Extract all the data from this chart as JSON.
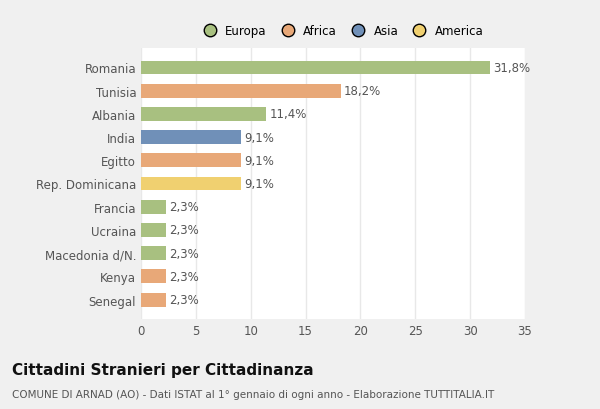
{
  "categories": [
    "Romania",
    "Tunisia",
    "Albania",
    "India",
    "Egitto",
    "Rep. Dominicana",
    "Francia",
    "Ucraina",
    "Macedonia d/N.",
    "Kenya",
    "Senegal"
  ],
  "values": [
    31.8,
    18.2,
    11.4,
    9.1,
    9.1,
    9.1,
    2.3,
    2.3,
    2.3,
    2.3,
    2.3
  ],
  "labels": [
    "31,8%",
    "18,2%",
    "11,4%",
    "9,1%",
    "9,1%",
    "9,1%",
    "2,3%",
    "2,3%",
    "2,3%",
    "2,3%",
    "2,3%"
  ],
  "colors": [
    "#a8c080",
    "#e8a878",
    "#a8c080",
    "#7090b8",
    "#e8a878",
    "#f0d070",
    "#a8c080",
    "#a8c080",
    "#a8c080",
    "#e8a878",
    "#e8a878"
  ],
  "legend_labels": [
    "Europa",
    "Africa",
    "Asia",
    "America"
  ],
  "legend_colors": [
    "#a8c080",
    "#e8a878",
    "#7090b8",
    "#f0d070"
  ],
  "title": "Cittadini Stranieri per Cittadinanza",
  "subtitle": "COMUNE DI ARNAD (AO) - Dati ISTAT al 1° gennaio di ogni anno - Elaborazione TUTTITALIA.IT",
  "xlim": [
    0,
    35
  ],
  "xticks": [
    0,
    5,
    10,
    15,
    20,
    25,
    30,
    35
  ],
  "bg_color": "#f0f0f0",
  "plot_bg_color": "#ffffff",
  "grid_color": "#e8e8e8",
  "bar_height": 0.6,
  "label_fontsize": 8.5,
  "ytick_fontsize": 8.5,
  "xtick_fontsize": 8.5,
  "title_fontsize": 11,
  "subtitle_fontsize": 7.5,
  "text_color": "#555555",
  "title_color": "#111111"
}
